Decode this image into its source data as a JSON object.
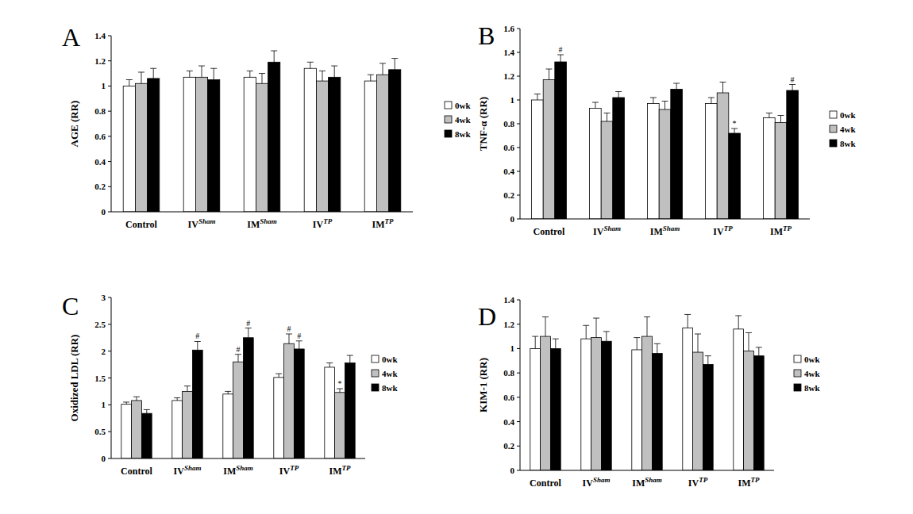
{
  "chart_data": [
    {
      "type": "bar",
      "title": "A",
      "ylabel": "AGE (RR)",
      "categories": [
        "Control",
        "IVSham",
        "IMSham",
        "IVTP",
        "IMTP"
      ],
      "ylim": [
        0,
        1.4
      ],
      "yticks": [
        0,
        0.2,
        0.4,
        0.6,
        0.8,
        1,
        1.2,
        1.4
      ],
      "legend": "right",
      "series": [
        {
          "name": "0wk",
          "color": "#ffffff",
          "values": [
            1.0,
            1.07,
            1.07,
            1.14,
            1.04
          ],
          "errors": [
            0.05,
            0.05,
            0.05,
            0.05,
            0.05
          ],
          "annotations": [
            null,
            null,
            null,
            null,
            null
          ]
        },
        {
          "name": "4wk",
          "color": "#c0c0c0",
          "values": [
            1.02,
            1.07,
            1.02,
            1.04,
            1.09
          ],
          "errors": [
            0.09,
            0.09,
            0.08,
            0.08,
            0.09
          ],
          "annotations": [
            null,
            null,
            null,
            null,
            null
          ]
        },
        {
          "name": "8wk",
          "color": "#000000",
          "values": [
            1.06,
            1.05,
            1.19,
            1.07,
            1.13
          ],
          "errors": [
            0.08,
            0.09,
            0.09,
            0.09,
            0.09
          ],
          "annotations": [
            null,
            null,
            null,
            null,
            null
          ]
        }
      ]
    },
    {
      "type": "bar",
      "title": "B",
      "ylabel": "TNF-α (RR)",
      "categories": [
        "Control",
        "IVSham",
        "IMSham",
        "IVTP",
        "IMTP"
      ],
      "ylim": [
        0,
        1.6
      ],
      "yticks": [
        0,
        0.2,
        0.4,
        0.6,
        0.8,
        1,
        1.2,
        1.4,
        1.6
      ],
      "legend": "right",
      "series": [
        {
          "name": "0wk",
          "color": "#ffffff",
          "values": [
            1.0,
            0.93,
            0.97,
            0.97,
            0.85
          ],
          "errors": [
            0.05,
            0.05,
            0.05,
            0.05,
            0.04
          ],
          "annotations": [
            null,
            null,
            null,
            null,
            null
          ]
        },
        {
          "name": "4wk",
          "color": "#c0c0c0",
          "values": [
            1.17,
            0.82,
            0.92,
            1.06,
            0.81
          ],
          "errors": [
            0.09,
            0.07,
            0.07,
            0.09,
            0.06
          ],
          "annotations": [
            null,
            null,
            null,
            null,
            null
          ]
        },
        {
          "name": "8wk",
          "color": "#000000",
          "values": [
            1.32,
            1.02,
            1.09,
            0.72,
            1.08
          ],
          "errors": [
            0.06,
            0.05,
            0.05,
            0.04,
            0.05
          ],
          "annotations": [
            "#",
            null,
            null,
            "*",
            "#"
          ]
        }
      ]
    },
    {
      "type": "bar",
      "title": "C",
      "ylabel": "Oxidized LDL (RR)",
      "categories": [
        "Control",
        "IVSham",
        "IMSham",
        "IVTP",
        "IMTP"
      ],
      "ylim": [
        0,
        3
      ],
      "yticks": [
        0,
        0.5,
        1,
        1.5,
        2,
        2.5,
        3
      ],
      "legend": "right",
      "series": [
        {
          "name": "0wk",
          "color": "#ffffff",
          "values": [
            1.01,
            1.08,
            1.2,
            1.51,
            1.7
          ],
          "errors": [
            0.04,
            0.05,
            0.05,
            0.07,
            0.08
          ],
          "annotations": [
            null,
            null,
            null,
            null,
            null
          ]
        },
        {
          "name": "4wk",
          "color": "#c0c0c0",
          "values": [
            1.08,
            1.25,
            1.8,
            2.14,
            1.23
          ],
          "errors": [
            0.07,
            0.1,
            0.14,
            0.18,
            0.07
          ],
          "annotations": [
            null,
            null,
            "#",
            "#",
            "*"
          ]
        },
        {
          "name": "8wk",
          "color": "#000000",
          "values": [
            0.84,
            2.02,
            2.25,
            2.04,
            1.78
          ],
          "errors": [
            0.07,
            0.16,
            0.18,
            0.15,
            0.14
          ],
          "annotations": [
            null,
            "#",
            "#",
            "#",
            null
          ]
        }
      ]
    },
    {
      "type": "bar",
      "title": "D",
      "ylabel": "KIM-1 (RR)",
      "categories": [
        "Control",
        "IVSham",
        "IMSham",
        "IVTP",
        "IMTP"
      ],
      "ylim": [
        0,
        1.4
      ],
      "yticks": [
        0,
        0.2,
        0.4,
        0.6,
        0.8,
        1,
        1.2,
        1.4
      ],
      "legend": "right",
      "series": [
        {
          "name": "0wk",
          "color": "#ffffff",
          "values": [
            1.0,
            1.08,
            0.99,
            1.17,
            1.16
          ],
          "errors": [
            0.1,
            0.11,
            0.1,
            0.11,
            0.11
          ],
          "annotations": [
            null,
            null,
            null,
            null,
            null
          ]
        },
        {
          "name": "4wk",
          "color": "#c0c0c0",
          "values": [
            1.1,
            1.09,
            1.1,
            0.97,
            0.98
          ],
          "errors": [
            0.16,
            0.16,
            0.16,
            0.15,
            0.15
          ],
          "annotations": [
            null,
            null,
            null,
            null,
            null
          ]
        },
        {
          "name": "8wk",
          "color": "#000000",
          "values": [
            1.0,
            1.06,
            0.96,
            0.87,
            0.94
          ],
          "errors": [
            0.08,
            0.08,
            0.08,
            0.07,
            0.07
          ],
          "annotations": [
            null,
            null,
            null,
            null,
            null
          ]
        }
      ]
    }
  ]
}
